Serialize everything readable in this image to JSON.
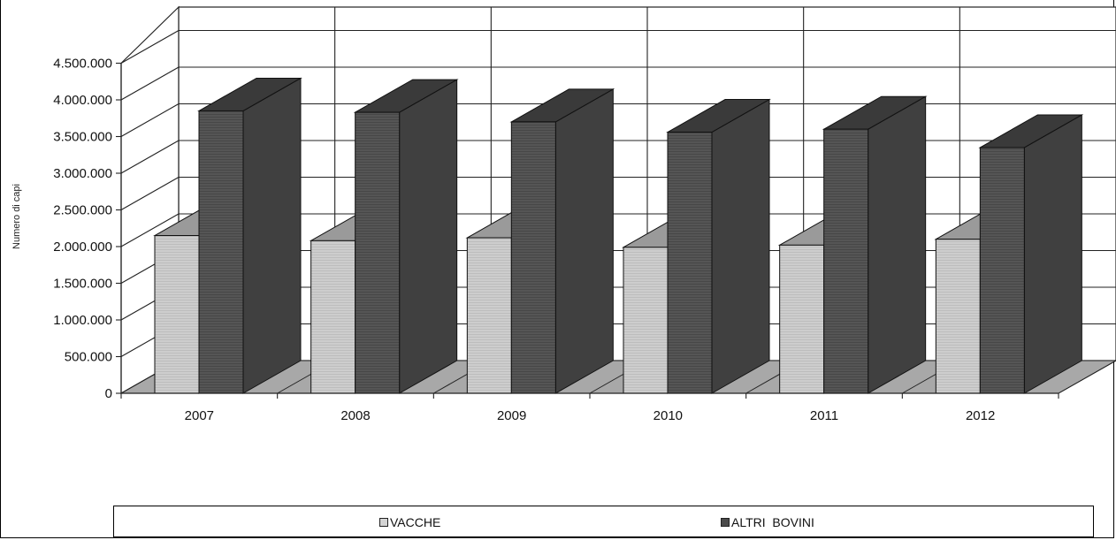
{
  "chart_data": {
    "type": "bar",
    "title": "",
    "xlabel": "",
    "ylabel": "Numero di capi",
    "ylim": [
      0,
      4500000
    ],
    "ytick_values": [
      0,
      500000,
      1000000,
      1500000,
      2000000,
      2500000,
      3000000,
      3500000,
      4000000,
      4500000
    ],
    "ytick_labels": [
      "0",
      "500.000",
      "1.000.000",
      "1.500.000",
      "2.000.000",
      "2.500.000",
      "3.000.000",
      "3.500.000",
      "4.000.000",
      "4.500.000"
    ],
    "categories": [
      "2007",
      "2008",
      "2009",
      "2010",
      "2011",
      "2012"
    ],
    "series": [
      {
        "name": "VACCHE",
        "values": [
          2150000,
          2080000,
          2120000,
          1990000,
          2020000,
          2100000
        ],
        "color": "#c8c8c8"
      },
      {
        "name": "ALTRI BOVINI",
        "values": [
          3850000,
          3830000,
          3700000,
          3560000,
          3600000,
          3350000
        ],
        "color": "#505050"
      }
    ],
    "grid": true,
    "legend_position": "bottom",
    "style": "3d-clustered-column"
  },
  "legend": {
    "items": [
      "VACCHE",
      "ALTRI  BOVINI"
    ]
  }
}
